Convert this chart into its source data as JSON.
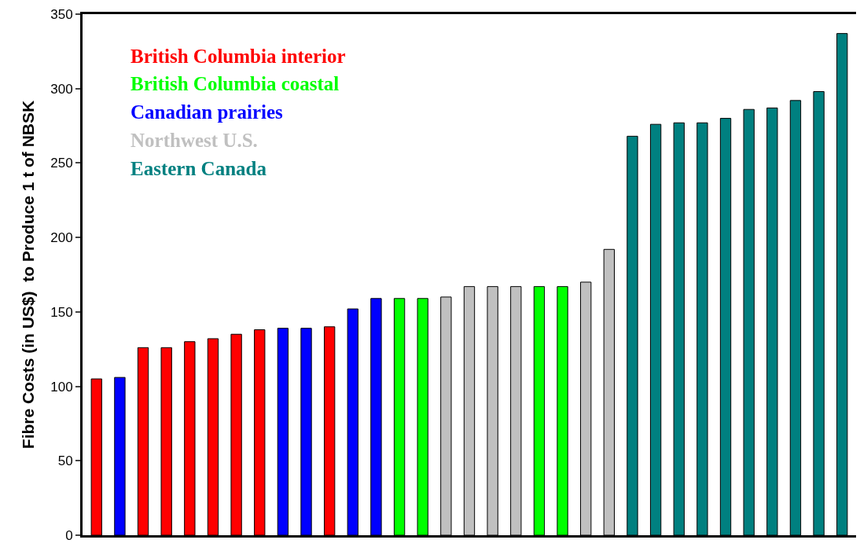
{
  "chart_data": {
    "type": "bar",
    "ylabel": "Fibre Costs (in US$)  to Produce 1 t of NBSK",
    "categories": [
      null,
      null,
      null,
      null,
      null,
      null,
      null,
      null,
      null,
      null,
      null,
      null,
      null,
      null,
      null,
      null,
      null,
      null,
      null,
      null,
      null,
      null,
      null,
      null,
      null,
      null,
      null,
      null,
      null,
      null,
      null,
      null,
      null
    ],
    "series": [
      {
        "name": "British Columbia interior",
        "color": "#ff0000",
        "values": [
          105,
          null,
          126,
          126,
          130,
          132,
          135,
          138,
          null,
          null,
          140,
          null,
          null,
          null,
          null,
          null,
          null,
          null,
          null,
          null,
          null,
          null,
          null,
          null,
          null,
          null,
          null,
          null,
          null,
          null,
          null,
          null,
          null
        ]
      },
      {
        "name": "British Columbia coastal",
        "color": "#00ff00",
        "values": [
          null,
          null,
          null,
          null,
          null,
          null,
          null,
          null,
          null,
          null,
          null,
          null,
          null,
          159,
          159,
          null,
          null,
          null,
          null,
          167,
          167,
          null,
          null,
          null,
          null,
          null,
          null,
          null,
          null,
          null,
          null,
          null,
          null
        ]
      },
      {
        "name": "Canadian prairies",
        "color": "#0000ff",
        "values": [
          null,
          106,
          null,
          null,
          null,
          null,
          null,
          null,
          139,
          139,
          null,
          152,
          159,
          null,
          null,
          null,
          null,
          null,
          null,
          null,
          null,
          null,
          null,
          null,
          null,
          null,
          null,
          null,
          null,
          null,
          null,
          null,
          null
        ]
      },
      {
        "name": "Northwest U.S.",
        "color": "#c0c0c0",
        "values": [
          null,
          null,
          null,
          null,
          null,
          null,
          null,
          null,
          null,
          null,
          null,
          null,
          null,
          null,
          null,
          160,
          167,
          167,
          167,
          null,
          null,
          170,
          192,
          null,
          null,
          null,
          null,
          null,
          null,
          null,
          null,
          null,
          null
        ]
      },
      {
        "name": "Eastern Canada",
        "color": "#008080",
        "values": [
          null,
          null,
          null,
          null,
          null,
          null,
          null,
          null,
          null,
          null,
          null,
          null,
          null,
          null,
          null,
          null,
          null,
          null,
          null,
          null,
          null,
          null,
          null,
          268,
          276,
          277,
          277,
          280,
          286,
          287,
          292,
          298,
          337
        ]
      }
    ],
    "ylim": [
      0,
      350
    ],
    "yticks": [
      0,
      50,
      100,
      150,
      200,
      250,
      300,
      350
    ],
    "tick_labels": "y",
    "legend": "top left"
  }
}
